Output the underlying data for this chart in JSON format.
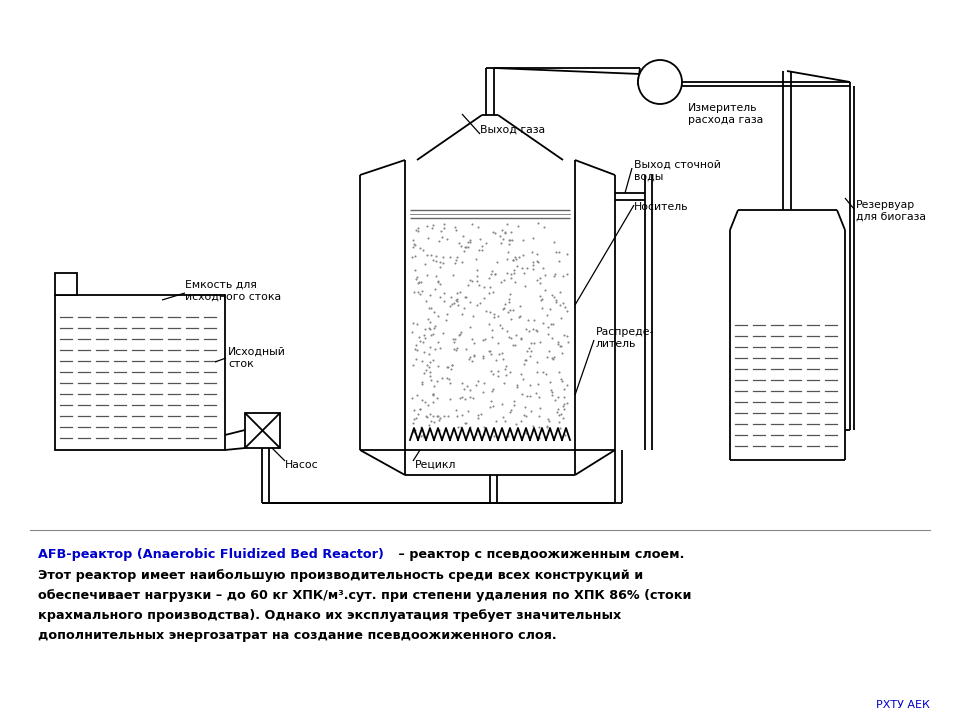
{
  "bg_color": "#ffffff",
  "line_color": "#000000",
  "text_color": "#000000",
  "blue_color": "#0000cc",
  "title_blue": "AFB-реактор (Anaerobic Fluidized Bed Reactor)",
  "title_black": " – реактор с псевдоожиженным слоем.",
  "body_text": [
    "Этот реактор имеет наибольшую производительность среди всех конструкций и",
    "обеспечивает нагрузки – до 60 кг ХПК/м³.сут. при степени удаления по ХПК 86% (стоки",
    "крахмального производства). Однако их эксплуатация требует значительных",
    "дополнительных энергозатрат на создание псевдоожиженного слоя."
  ],
  "labels": {
    "vyhod_gaza": "Выход газа",
    "izmeritel": "Измеритель",
    "rashoda_gaza": "расхода газа",
    "vyhod_stochnoy": "Выход сточной",
    "vody": "воды",
    "nositel": "Носитель",
    "rezervuar": "Резервуар",
    "dlya_biogaza": "для биогаза",
    "emkost": "Емкость для",
    "ishodnogo_stoka": "исходного стока",
    "iskhodny_stok": "Исходный",
    "stok": "сток",
    "raspredelitel1": "Распреде-",
    "raspredelitel2": "литель",
    "nasos": "Насос",
    "recikl": "Рецикл"
  },
  "rxtu": "РХТУ АЕК"
}
